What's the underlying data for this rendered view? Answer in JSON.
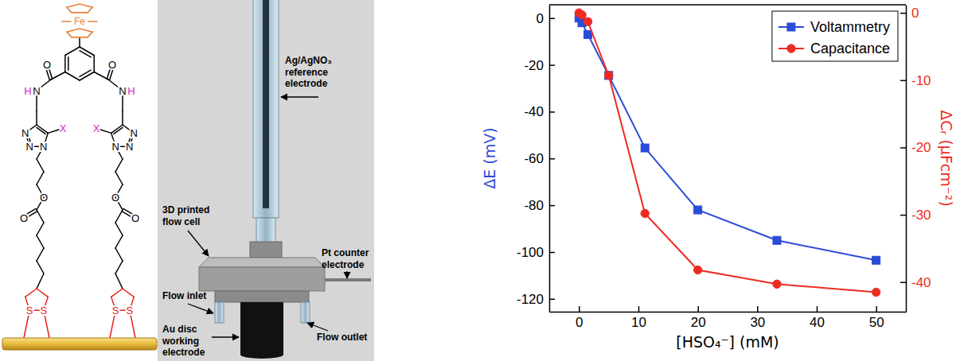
{
  "molecule": {
    "metal": "Fe",
    "left_arm": [
      "O",
      "N",
      "H",
      "N",
      "N",
      "N",
      "X",
      "O",
      "O",
      "S",
      "S"
    ],
    "right_arm": [
      "O",
      "N",
      "H",
      "N",
      "N",
      "N",
      "X",
      "O",
      "O",
      "S",
      "S"
    ]
  },
  "flow_cell": {
    "labels": [
      "Ag/AgNO₃ reference electrode",
      "3D printed flow cell",
      "Flow inlet",
      "Au disc working electrode",
      "Pt counter electrode",
      "Flow outlet"
    ]
  },
  "chart_data": {
    "type": "line",
    "xlabel": "[HSO₄⁻] (mM)",
    "ylabel": "ΔE (mV)",
    "y2label": "ΔCᵣ (μFcm⁻²)",
    "x": [
      0,
      0.5,
      1.5,
      5,
      11.1,
      20,
      33.3,
      50
    ],
    "xlim": [
      -5,
      55
    ],
    "xticks": [
      0,
      10,
      20,
      30,
      40,
      50
    ],
    "ylim": [
      -125.5,
      5.7
    ],
    "yticks": [
      -120,
      -100,
      -80,
      -60,
      -40,
      -20,
      0
    ],
    "y2lim": [
      -44.4,
      1.2
    ],
    "y2ticks": [
      -40,
      -30,
      -20,
      -10,
      0
    ],
    "legend": "top right",
    "series": [
      {
        "name": "Voltammetry",
        "color": "#2b4bd9",
        "marker": "square",
        "values": [
          0,
          -2,
          -7,
          -24.5,
          -55.5,
          -82,
          -95,
          -103.5
        ]
      },
      {
        "name": "Capacitance",
        "color": "#ee2b22",
        "marker": "circle",
        "axis": "y2",
        "values": [
          0,
          -0.3,
          -1.3,
          -9.3,
          -29.8,
          -38.2,
          -40.3,
          -41.5
        ]
      }
    ]
  }
}
